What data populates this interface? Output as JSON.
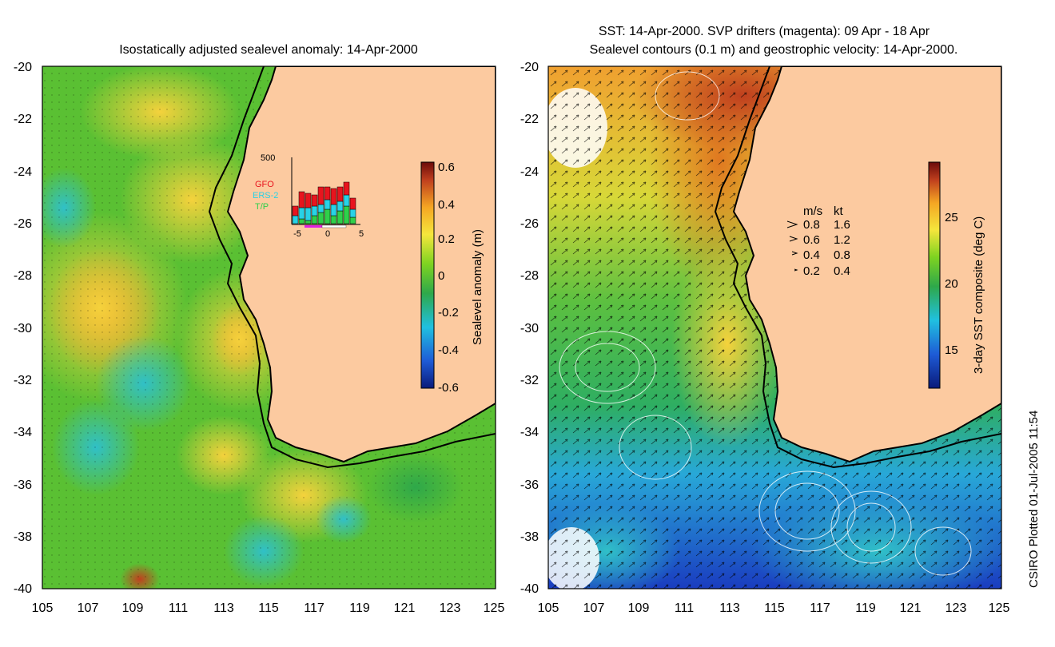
{
  "left_panel": {
    "title": "Isostatically adjusted sealevel anomaly: 14-Apr-2000",
    "colorbar": {
      "label": "Sealevel anomaly (m)",
      "ticks": [
        "0.6",
        "0.4",
        "0.2",
        "0",
        "-0.2",
        "-0.4",
        "-0.6"
      ],
      "colors": [
        "#0a1a7a",
        "#1e5bd6",
        "#20c0e0",
        "#2ea84a",
        "#7ed321",
        "#f5e63c",
        "#f5a623",
        "#c0401e",
        "#6b0a0a"
      ]
    },
    "inset": {
      "ymax_label": "500",
      "legend": [
        {
          "name": "GFO",
          "color": "#e8141e"
        },
        {
          "name": "ERS-2",
          "color": "#28d2e6"
        },
        {
          "name": "T/P",
          "color": "#2fd04a"
        }
      ],
      "xticks": [
        "-5",
        "0",
        "5"
      ]
    },
    "land_color": "#fccaa0"
  },
  "right_panel": {
    "title_line1": "SST: 14-Apr-2000. SVP drifters (magenta): 09 Apr - 18 Apr",
    "title_line2": "Sealevel contours (0.1 m) and geostrophic velocity: 14-Apr-2000.",
    "colorbar": {
      "label": "3-day SST composite (deg C)",
      "ticks": [
        "25",
        "20",
        "15"
      ],
      "colors": [
        "#0a1a7a",
        "#1e5bd6",
        "#20c0e0",
        "#2ea84a",
        "#7ed321",
        "#f5e63c",
        "#f5a623",
        "#c0401e",
        "#6b0a0a"
      ]
    },
    "velocity_legend": {
      "header_ms": "m/s",
      "header_kt": "kt",
      "rows": [
        {
          "ms": "0.8",
          "kt": "1.6"
        },
        {
          "ms": "0.6",
          "kt": "1.2"
        },
        {
          "ms": "0.4",
          "kt": "0.8"
        },
        {
          "ms": "0.2",
          "kt": "0.4"
        }
      ]
    }
  },
  "axes": {
    "lat_ticks": [
      "-20",
      "-22",
      "-24",
      "-26",
      "-28",
      "-30",
      "-32",
      "-34",
      "-36",
      "-38",
      "-40"
    ],
    "lon_ticks": [
      "105",
      "107",
      "109",
      "111",
      "113",
      "115",
      "117",
      "119",
      "121",
      "123",
      "125"
    ]
  },
  "footer": {
    "credit": "CSIRO Plotted 01-Jul-2005 11:54"
  }
}
